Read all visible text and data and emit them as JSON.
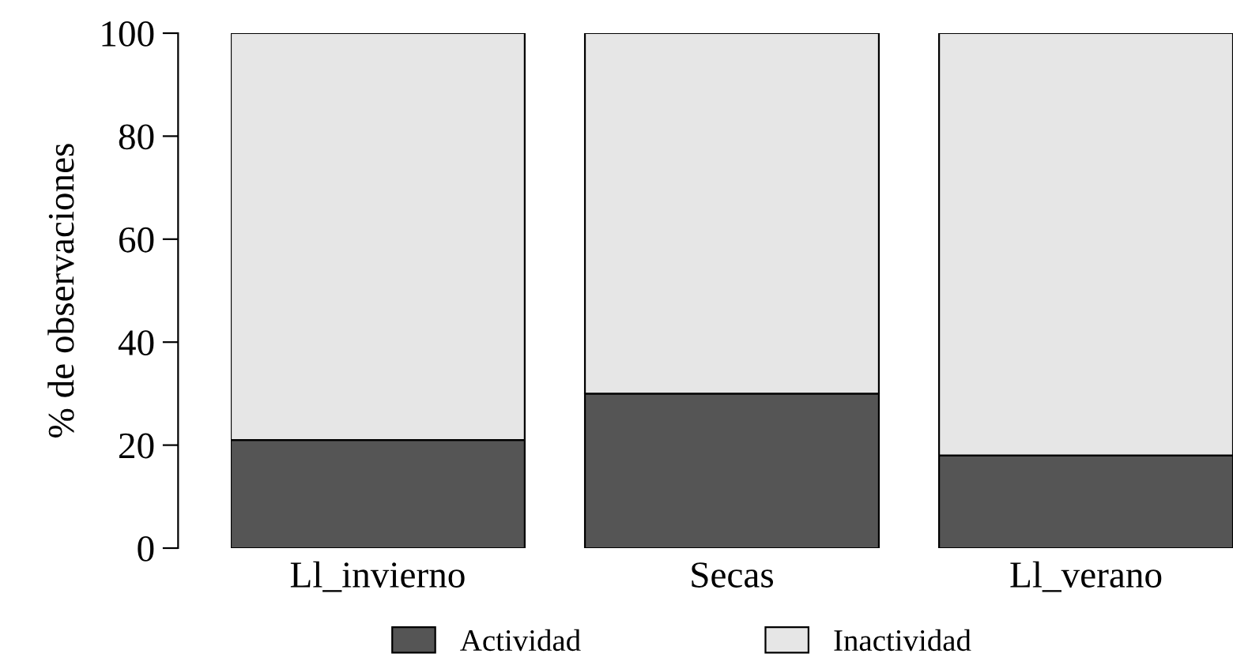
{
  "chart_data": {
    "type": "bar",
    "stacked": true,
    "ylabel": "% de observaciones",
    "categories": [
      "Ll_invierno",
      "Secas",
      "Ll_verano"
    ],
    "series": [
      {
        "name": "Actividad",
        "color": "#555555",
        "values": [
          21,
          30,
          18
        ]
      },
      {
        "name": "Inactividad",
        "color": "#e6e6e6",
        "values": [
          79,
          70,
          82
        ]
      }
    ],
    "ylim": [
      0,
      100
    ],
    "yticks": [
      0,
      20,
      40,
      60,
      80,
      100
    ],
    "grid": false,
    "legend": "bottom"
  }
}
